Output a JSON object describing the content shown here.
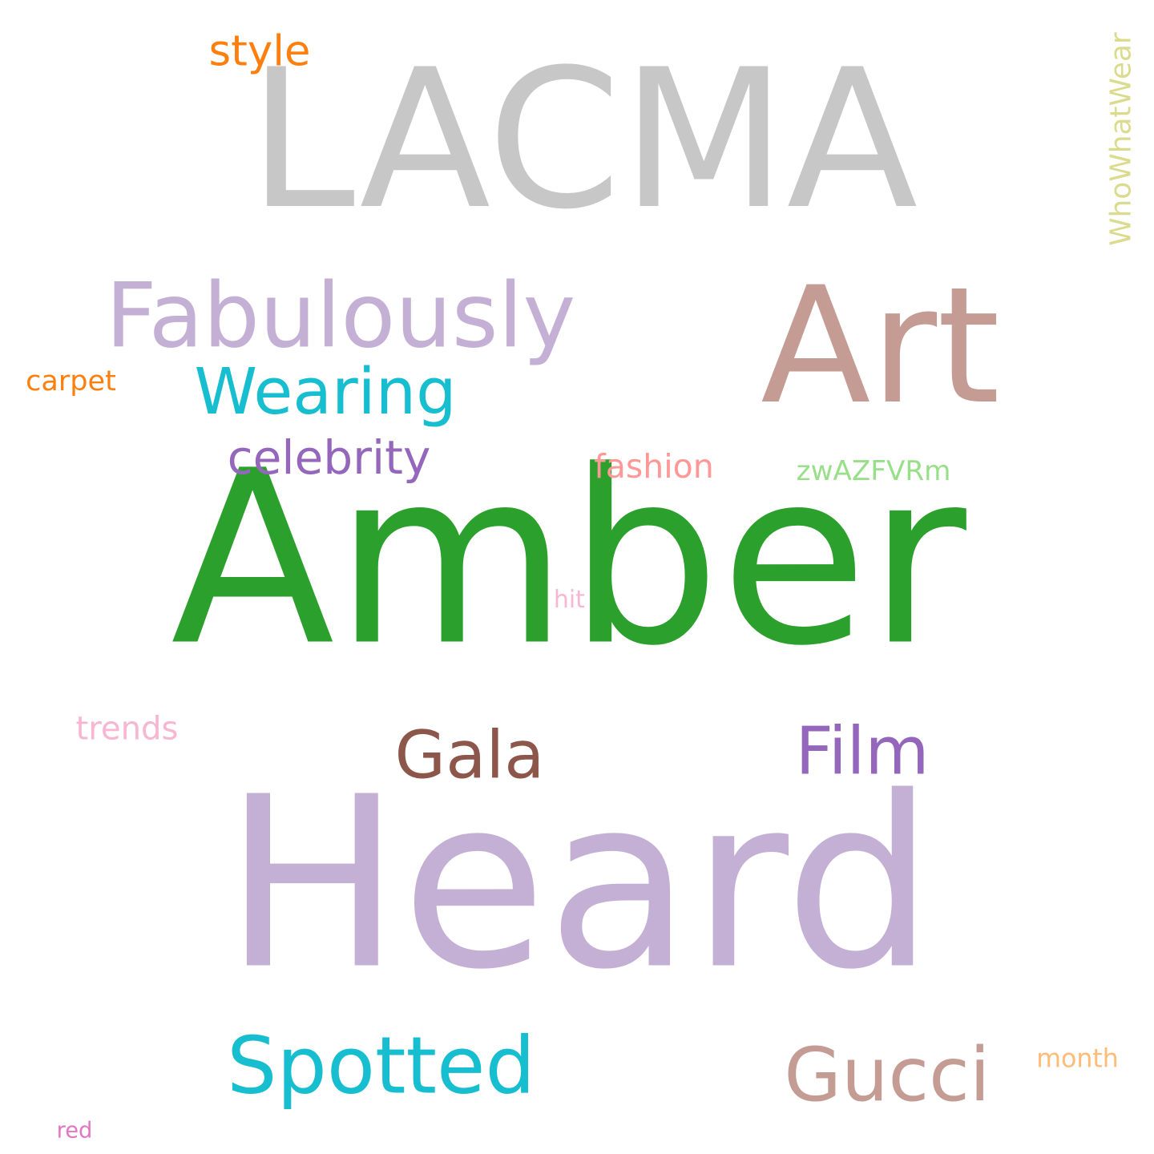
{
  "words": [
    {
      "key": "lacma",
      "text": "LACMA",
      "color": "#c7c7c7"
    },
    {
      "key": "art",
      "text": "Art",
      "color": "#c49c94"
    },
    {
      "key": "amber",
      "text": "Amber",
      "color": "#2ca02c"
    },
    {
      "key": "heard",
      "text": "Heard",
      "color": "#c5b0d5"
    },
    {
      "key": "fabulously",
      "text": "Fabulously",
      "color": "#c5b0d5"
    },
    {
      "key": "wearing",
      "text": "Wearing",
      "color": "#17becf"
    },
    {
      "key": "style",
      "text": "style",
      "color": "#ff7f0e"
    },
    {
      "key": "carpet",
      "text": "carpet",
      "color": "#ff7f0e"
    },
    {
      "key": "celebrity",
      "text": "celebrity",
      "color": "#9467bd"
    },
    {
      "key": "fashion",
      "text": "fashion",
      "color": "#ff9896"
    },
    {
      "key": "zwazfvrm",
      "text": "zwAZFVRm",
      "color": "#98df8a"
    },
    {
      "key": "whowhatwear",
      "text": "WhoWhatWear",
      "color": "#dbdb8d"
    },
    {
      "key": "hit",
      "text": "hit",
      "color": "#f7b6d2"
    },
    {
      "key": "trends",
      "text": "trends",
      "color": "#f7b6d2"
    },
    {
      "key": "gala",
      "text": "Gala",
      "color": "#8c564b"
    },
    {
      "key": "film",
      "text": "Film",
      "color": "#9467bd"
    },
    {
      "key": "spotted",
      "text": "Spotted",
      "color": "#17becf"
    },
    {
      "key": "gucci",
      "text": "Gucci",
      "color": "#c49c94"
    },
    {
      "key": "month",
      "text": "month",
      "color": "#ffbb78"
    },
    {
      "key": "red",
      "text": "red",
      "color": "#e377c2"
    }
  ]
}
